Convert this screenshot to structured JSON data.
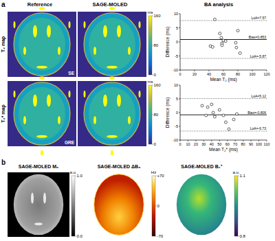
{
  "chart_data": [
    {
      "type": "scatter",
      "x_label": "Mean T₂ (ms)",
      "y_label": "Difference (ms)",
      "x": [
        42,
        45,
        48,
        55,
        57,
        58,
        58,
        60,
        63,
        77,
        78,
        80,
        83
      ],
      "values": [
        -1.5,
        -1.8,
        8,
        3,
        1.5,
        -0.5,
        -1.2,
        0.5,
        0.3,
        -0.3,
        -2,
        4,
        -4
      ],
      "color": "#000000",
      "marker": "open-circle",
      "xlim": [
        0,
        120
      ],
      "xticks": [
        0,
        20,
        40,
        60,
        80,
        100,
        120
      ],
      "ylim": [
        -10,
        10
      ],
      "yticks": [
        -10,
        -5,
        0,
        5,
        10
      ],
      "reference_lines": [
        {
          "label": "LoA=7.57",
          "value": 7.57,
          "line_style": "dotted"
        },
        {
          "label": "Bias=0.853",
          "value": 0.853,
          "line_style": "solid"
        },
        {
          "label": "LoA=-5.87",
          "value": -5.87,
          "line_style": "dotted"
        }
      ]
    },
    {
      "type": "scatter",
      "x_label": "Mean T₂* (ms)",
      "y_label": "Difference (ms)",
      "x": [
        28,
        33,
        35,
        40,
        42,
        44,
        50,
        55,
        58,
        62,
        68,
        72
      ],
      "values": [
        2.5,
        -1,
        2,
        3,
        0,
        -1.5,
        1,
        -1,
        -3.5,
        -6,
        -2.5,
        -0.5
      ],
      "color": "#000000",
      "marker": "open-circle",
      "xlim": [
        0,
        110
      ],
      "xticks": [
        0,
        10,
        20,
        30,
        40,
        50,
        60,
        70,
        80,
        90,
        100,
        110
      ],
      "ylim": [
        -10,
        10
      ],
      "yticks": [
        -10,
        -5,
        0,
        5,
        10
      ],
      "reference_lines": [
        {
          "label": "LoA=5.12",
          "value": 5.12,
          "line_style": "dotted"
        },
        {
          "label": "Bias=-0.806",
          "value": -0.806,
          "line_style": "solid"
        },
        {
          "label": "LoA=-6.73",
          "value": -6.73,
          "line_style": "dotted"
        }
      ]
    }
  ],
  "figure": {
    "panels": [
      {
        "label": "a",
        "columns": [
          "Reference",
          "SAGE-MOLED",
          "BA analysis"
        ],
        "rows": [
          {
            "label": "T₂ map",
            "tag": "SE",
            "colorbar": {
              "unit": "ms",
              "range": [
                0,
                160
              ],
              "ticks": [
                0,
                80,
                160
              ]
            }
          },
          {
            "label": "T₂* map",
            "tag": "GRE",
            "colorbar": {
              "unit": "ms",
              "range": [
                0,
                160
              ],
              "ticks": [
                0,
                80,
                160
              ]
            }
          }
        ]
      },
      {
        "label": "b",
        "images": [
          {
            "title": "SAGE-MOLED M₀",
            "colorbar": {
              "unit": "a.u.",
              "range": [
                0,
                1
              ],
              "ticks": [
                {
                  "value": 0,
                  "label": "0.0"
                },
                {
                  "value": 1,
                  "label": "1.0"
                }
              ]
            }
          },
          {
            "title": "SAGE-MOLED ΔB₀",
            "colorbar": {
              "unit": "Hz",
              "range": [
                -70,
                70
              ],
              "ticks": [
                -70,
                0,
                {
                  "value": 70,
                  "label": "+70"
                }
              ]
            }
          },
          {
            "title": "SAGE-MOLED B₁⁺",
            "colorbar": {
              "unit": "a.u.",
              "range": [
                0.8,
                1.1
              ],
              "ticks": [
                0.8,
                1.1
              ]
            }
          }
        ]
      }
    ]
  }
}
